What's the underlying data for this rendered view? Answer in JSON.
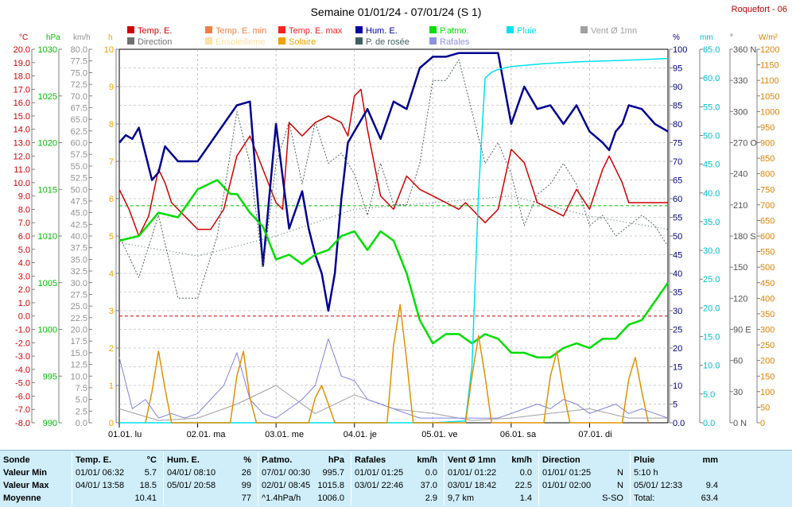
{
  "title": "Semaine 01/01/24 - 07/01/24 (S 1)",
  "station": "Roquefort - 06",
  "legend": [
    {
      "label": "Temp. E.",
      "color": "#d00000"
    },
    {
      "label": "Temp. E. min",
      "color": "#f08040"
    },
    {
      "label": "Temp. E. max",
      "color": "#ff2020"
    },
    {
      "label": "Hum. E.",
      "color": "#0000a0"
    },
    {
      "label": "P.atmo.",
      "color": "#00e000"
    },
    {
      "label": "Pluie",
      "color": "#00e0f0"
    },
    {
      "label": "Vent Ø 1mn",
      "color": "#a0a0a0"
    },
    {
      "label": "Direction",
      "color": "#707070"
    },
    {
      "label": "Ensoleilleme",
      "color": "#ffe0a0"
    },
    {
      "label": "Solaire",
      "color": "#f0a000"
    },
    {
      "label": "P. de rosée",
      "color": "#406060"
    },
    {
      "label": "Rafales",
      "color": "#9090e0"
    }
  ],
  "axis_units": {
    "temp": "°C",
    "press": "hPa",
    "wind": "km/h",
    "sun": "h",
    "hum": "%",
    "rain": "mm",
    "dir": "°",
    "solar": "W/m²"
  },
  "colors": {
    "temp": "#d00000",
    "press": "#00c000",
    "wind": "#909090",
    "sun": "#f0a000",
    "hum": "#000080",
    "rain": "#00c0d0",
    "dir": "#505050",
    "solar": "#e08000",
    "gust": "#8080d0",
    "dew": "#406060"
  },
  "chart_data": {
    "type": "line",
    "title": "Semaine 01/01/24 - 07/01/24 (S 1)",
    "x_categories": [
      "01.01. lu",
      "02.01. ma",
      "03.01. me",
      "04.01. je",
      "05.01. ve",
      "06.01. sa",
      "07.01. di"
    ],
    "x_range_hours": [
      0,
      168
    ],
    "axes": {
      "temp_c": {
        "range": [
          -8.0,
          20.0
        ],
        "ticks": [
          "20.0",
          "19.0",
          "18.0",
          "17.0",
          "16.0",
          "15.0",
          "14.0",
          "13.0",
          "12.0",
          "11.0",
          "10.0",
          "9.0",
          "8.0",
          "7.0",
          "6.0",
          "5.0",
          "4.0",
          "3.0",
          "2.0",
          "1.0",
          "0.0",
          "-1.0",
          "-2.0",
          "-3.0",
          "-4.0",
          "-5.0",
          "-6.0",
          "-7.0",
          "-8.0"
        ]
      },
      "press_hpa": {
        "range": [
          990,
          1030
        ],
        "ticks": [
          "1030",
          "1025",
          "1020",
          "1015",
          "1010",
          "1005",
          "1000",
          "995",
          "990"
        ]
      },
      "wind_kmh": {
        "range": [
          0,
          80
        ],
        "ticks": [
          "80.0",
          "77.5",
          "75.0",
          "72.5",
          "70.0",
          "67.5",
          "65.0",
          "62.5",
          "60.0",
          "57.5",
          "55.0",
          "52.5",
          "50.0",
          "47.5",
          "45.0",
          "42.5",
          "40.0",
          "37.5",
          "35.0",
          "32.5",
          "30.0",
          "27.5",
          "25.0",
          "22.5",
          "20.0",
          "17.5",
          "15.0",
          "12.5",
          "10.0",
          "7.5",
          "5.0",
          "2.5",
          "0.0"
        ]
      },
      "sun_h": {
        "range": [
          0,
          10
        ],
        "ticks": [
          "10",
          "9",
          "8",
          "7",
          "6",
          "5",
          "4",
          "3",
          "2",
          "1",
          "0"
        ]
      },
      "hum_pct": {
        "range": [
          0,
          100
        ],
        "ticks": [
          "100",
          "95",
          "90",
          "85",
          "80",
          "75",
          "70",
          "65",
          "60",
          "55",
          "50",
          "45",
          "40",
          "35",
          "30",
          "25",
          "20",
          "15",
          "10",
          "5",
          "0.0"
        ]
      },
      "rain_mm": {
        "range": [
          0,
          65
        ],
        "ticks": [
          "65.0",
          "60.0",
          "55.0",
          "50.0",
          "45.0",
          "40.0",
          "35.0",
          "30.0",
          "25.0",
          "20.0",
          "15.0",
          "10.0",
          "5.0",
          "0.0"
        ]
      },
      "dir_deg": {
        "range": [
          0,
          360
        ],
        "ticks": [
          "360 N",
          "330",
          "300",
          "270 O",
          "240",
          "210",
          "180 S",
          "150",
          "120",
          "90 E",
          "60",
          "30",
          "0 N"
        ]
      },
      "solar_wm2": {
        "range": [
          0,
          1200
        ],
        "ticks": [
          "1200",
          "1150",
          "1100",
          "1050",
          "1000",
          "950",
          "900",
          "850",
          "800",
          "750",
          "700",
          "650",
          "600",
          "550",
          "500",
          "450",
          "400",
          "350",
          "300",
          "250",
          "200",
          "150",
          "100",
          "50",
          "0"
        ]
      }
    },
    "series": [
      {
        "name": "Temp. E.",
        "axis": "temp_c",
        "x": [
          0,
          3,
          6,
          9,
          12,
          14,
          16,
          18,
          20,
          22,
          24,
          28,
          32,
          36,
          40,
          44,
          48,
          50,
          52,
          56,
          60,
          64,
          68,
          70,
          72,
          74,
          76,
          80,
          84,
          88,
          90,
          92,
          96,
          100,
          104,
          106,
          108,
          110,
          112,
          116,
          120,
          124,
          128,
          132,
          136,
          140,
          144,
          148,
          150,
          152,
          154,
          156,
          160,
          164,
          168
        ],
        "y": [
          9.5,
          8.0,
          6.0,
          7.5,
          11.0,
          10.0,
          8.5,
          8.0,
          7.5,
          7.0,
          6.5,
          6.5,
          8.0,
          12.0,
          13.5,
          11.0,
          8.5,
          8.0,
          14.5,
          13.5,
          14.5,
          15.0,
          14.5,
          13.5,
          16.5,
          17.0,
          14.0,
          9.0,
          8.0,
          10.5,
          10.0,
          9.5,
          9.0,
          8.5,
          8.0,
          8.5,
          8.0,
          7.5,
          7.0,
          8.0,
          12.5,
          11.5,
          8.5,
          8.0,
          7.5,
          9.5,
          8.0,
          11.0,
          12.0,
          11.0,
          10.0,
          8.5,
          8.5,
          8.5,
          8.5
        ]
      },
      {
        "name": "Hum. E.",
        "axis": "hum_pct",
        "x": [
          0,
          2,
          4,
          6,
          8,
          10,
          12,
          14,
          16,
          18,
          20,
          22,
          24,
          28,
          32,
          36,
          40,
          44,
          48,
          52,
          56,
          58,
          60,
          62,
          64,
          66,
          68,
          70,
          72,
          76,
          80,
          84,
          88,
          92,
          96,
          100,
          104,
          108,
          112,
          116,
          120,
          124,
          128,
          132,
          136,
          140,
          144,
          148,
          150,
          152,
          154,
          156,
          160,
          164,
          168
        ],
        "y": [
          75,
          77,
          76,
          79,
          72,
          65,
          67,
          74,
          72,
          70,
          70,
          70,
          70,
          75,
          80,
          85,
          86,
          42,
          80,
          52,
          62,
          52,
          45,
          40,
          30,
          40,
          60,
          75,
          78,
          84,
          76,
          86,
          84,
          95,
          98,
          98,
          99,
          99,
          99,
          99,
          80,
          90,
          84,
          85,
          80,
          85,
          78,
          75,
          73,
          78,
          80,
          85,
          84,
          80,
          78
        ]
      },
      {
        "name": "P.atmo.",
        "axis": "press_hpa",
        "x": [
          0,
          6,
          12,
          18,
          24,
          30,
          34,
          36,
          40,
          44,
          48,
          52,
          56,
          60,
          64,
          68,
          72,
          76,
          80,
          84,
          88,
          92,
          96,
          100,
          104,
          108,
          112,
          116,
          120,
          124,
          128,
          132,
          136,
          140,
          144,
          148,
          152,
          156,
          160,
          164,
          168
        ],
        "y": [
          1009.5,
          1010.0,
          1012.5,
          1012.0,
          1015.0,
          1016.0,
          1014.5,
          1014.5,
          1012.5,
          1011.0,
          1007.5,
          1008.0,
          1007.0,
          1008.0,
          1008.5,
          1010.0,
          1010.5,
          1008.5,
          1010.5,
          1009.5,
          1006.0,
          1001.0,
          998.5,
          999.5,
          999.5,
          998.5,
          999.5,
          999.0,
          997.5,
          997.5,
          997.0,
          997.0,
          998.0,
          998.5,
          998.0,
          999.0,
          999.0,
          1000.5,
          1001.0,
          1003.0,
          1005.0
        ]
      },
      {
        "name": "Pluie",
        "axis": "rain_mm",
        "x": [
          0,
          96,
          106,
          108,
          110,
          112,
          114,
          116,
          120,
          130,
          140,
          150,
          160,
          168
        ],
        "y": [
          0,
          0,
          0.3,
          10,
          40,
          60,
          61,
          61.5,
          62,
          62.5,
          62.8,
          63,
          63.2,
          63.4
        ]
      },
      {
        "name": "Vent Ø 1mn",
        "axis": "wind_kmh",
        "x": [
          0,
          12,
          24,
          36,
          48,
          60,
          72,
          84,
          96,
          108,
          120,
          132,
          144,
          156,
          168
        ],
        "y": [
          3,
          0.5,
          1,
          4,
          8,
          2,
          6,
          3,
          2,
          0.5,
          1,
          2,
          3,
          1,
          1
        ]
      },
      {
        "name": "Rafales",
        "axis": "wind_kmh",
        "x": [
          0,
          4,
          8,
          12,
          16,
          20,
          24,
          28,
          32,
          36,
          40,
          44,
          48,
          52,
          56,
          60,
          64,
          68,
          72,
          76,
          80,
          84,
          88,
          92,
          96,
          100,
          104,
          108,
          112,
          116,
          120,
          124,
          128,
          132,
          136,
          140,
          144,
          148,
          152,
          156,
          160,
          164,
          168
        ],
        "y": [
          14,
          3,
          5,
          1,
          2,
          1,
          2,
          5,
          8,
          15,
          5,
          2,
          1,
          3,
          5,
          8,
          18,
          10,
          9,
          5,
          4,
          3,
          2,
          1,
          1,
          1,
          1,
          1,
          1,
          1,
          2,
          3,
          4,
          3,
          5,
          4,
          2,
          3,
          4,
          2,
          3,
          2,
          1
        ]
      },
      {
        "name": "Direction",
        "axis": "dir_deg",
        "x": [
          0,
          6,
          12,
          18,
          24,
          30,
          36,
          40,
          44,
          48,
          52,
          56,
          60,
          64,
          68,
          72,
          76,
          80,
          84,
          88,
          92,
          96,
          100,
          104,
          108,
          112,
          116,
          120,
          124,
          128,
          132,
          136,
          140,
          144,
          148,
          152,
          156,
          160,
          164,
          168
        ],
        "y": [
          180,
          140,
          200,
          120,
          120,
          180,
          300,
          250,
          150,
          250,
          290,
          230,
          290,
          250,
          260,
          240,
          200,
          250,
          210,
          210,
          250,
          330,
          330,
          350,
          300,
          250,
          270,
          240,
          190,
          220,
          230,
          250,
          230,
          190,
          200,
          180,
          190,
          200,
          190,
          170
        ]
      },
      {
        "name": "Solaire",
        "axis": "solar_wm2",
        "x": [
          8,
          10,
          12,
          14,
          16,
          34,
          36,
          38,
          40,
          42,
          58,
          60,
          62,
          64,
          66,
          82,
          84,
          86,
          88,
          90,
          106,
          108,
          110,
          112,
          114,
          130,
          132,
          134,
          136,
          138,
          154,
          156,
          158,
          160,
          162
        ],
        "y": [
          0,
          100,
          230,
          110,
          0,
          0,
          150,
          230,
          80,
          0,
          0,
          80,
          120,
          60,
          0,
          0,
          250,
          380,
          200,
          0,
          0,
          150,
          280,
          150,
          0,
          0,
          150,
          230,
          100,
          0,
          0,
          140,
          210,
          100,
          0
        ]
      },
      {
        "name": "P. de rosée",
        "axis": "temp_c",
        "x": [
          0,
          24,
          48,
          72,
          96,
          120,
          144,
          168
        ],
        "y": [
          5.5,
          4.5,
          6.0,
          8.0,
          8.5,
          9.0,
          7.5,
          6.5
        ]
      }
    ],
    "reference_lines": [
      {
        "axis": "temp_c",
        "value": 0.0,
        "color": "#d00000"
      },
      {
        "axis": "press_hpa",
        "value": 1013.25,
        "color": "#00c000"
      }
    ]
  },
  "stats": {
    "sonde": {
      "title": "Sonde",
      "rows": [
        "Valeur Min",
        "Valeur Max",
        "Moyenne"
      ]
    },
    "temp": {
      "title": "Temp. E.",
      "unit": "°C",
      "rows": [
        [
          "01/01/ 06:32",
          "5.7"
        ],
        [
          "04/01/ 13:58",
          "18.5"
        ],
        [
          "",
          "10.41"
        ]
      ]
    },
    "hum": {
      "title": "Hum. E.",
      "unit": "%",
      "rows": [
        [
          "04/01/ 08:10",
          "26"
        ],
        [
          "05/01/ 20:58",
          "99"
        ],
        [
          "",
          "77"
        ]
      ]
    },
    "press": {
      "title": "P.atmo.",
      "unit": "hPa",
      "rows": [
        [
          "07/01/ 00:30",
          "995.7"
        ],
        [
          "02/01/ 08:45",
          "1015.8"
        ],
        [
          "^1.4hPa/h",
          "1006.0"
        ]
      ]
    },
    "gust": {
      "title": "Rafales",
      "unit": "km/h",
      "rows": [
        [
          "01/01/ 01:25",
          "0.0"
        ],
        [
          "03/01/ 22:46",
          "37.0"
        ],
        [
          "",
          "2.9"
        ]
      ]
    },
    "wind": {
      "title": "Vent Ø 1mn",
      "unit": "km/h",
      "rows": [
        [
          "01/01/ 01:22",
          "0.0"
        ],
        [
          "03/01/ 18:42",
          "22.5"
        ],
        [
          "9,7 km",
          "1.4"
        ]
      ]
    },
    "dir": {
      "title": "Direction",
      "unit": "",
      "rows": [
        [
          "01/01/ 01:25",
          "N"
        ],
        [
          "01/01/ 02:00",
          "N"
        ],
        [
          "",
          "S-SO"
        ]
      ]
    },
    "rain": {
      "title": "Pluie",
      "unit": "mm",
      "rows": [
        [
          "5:10 h",
          ""
        ],
        [
          "05/01/ 12:33",
          "9.4"
        ],
        [
          "Total:",
          "63.4"
        ]
      ]
    }
  }
}
